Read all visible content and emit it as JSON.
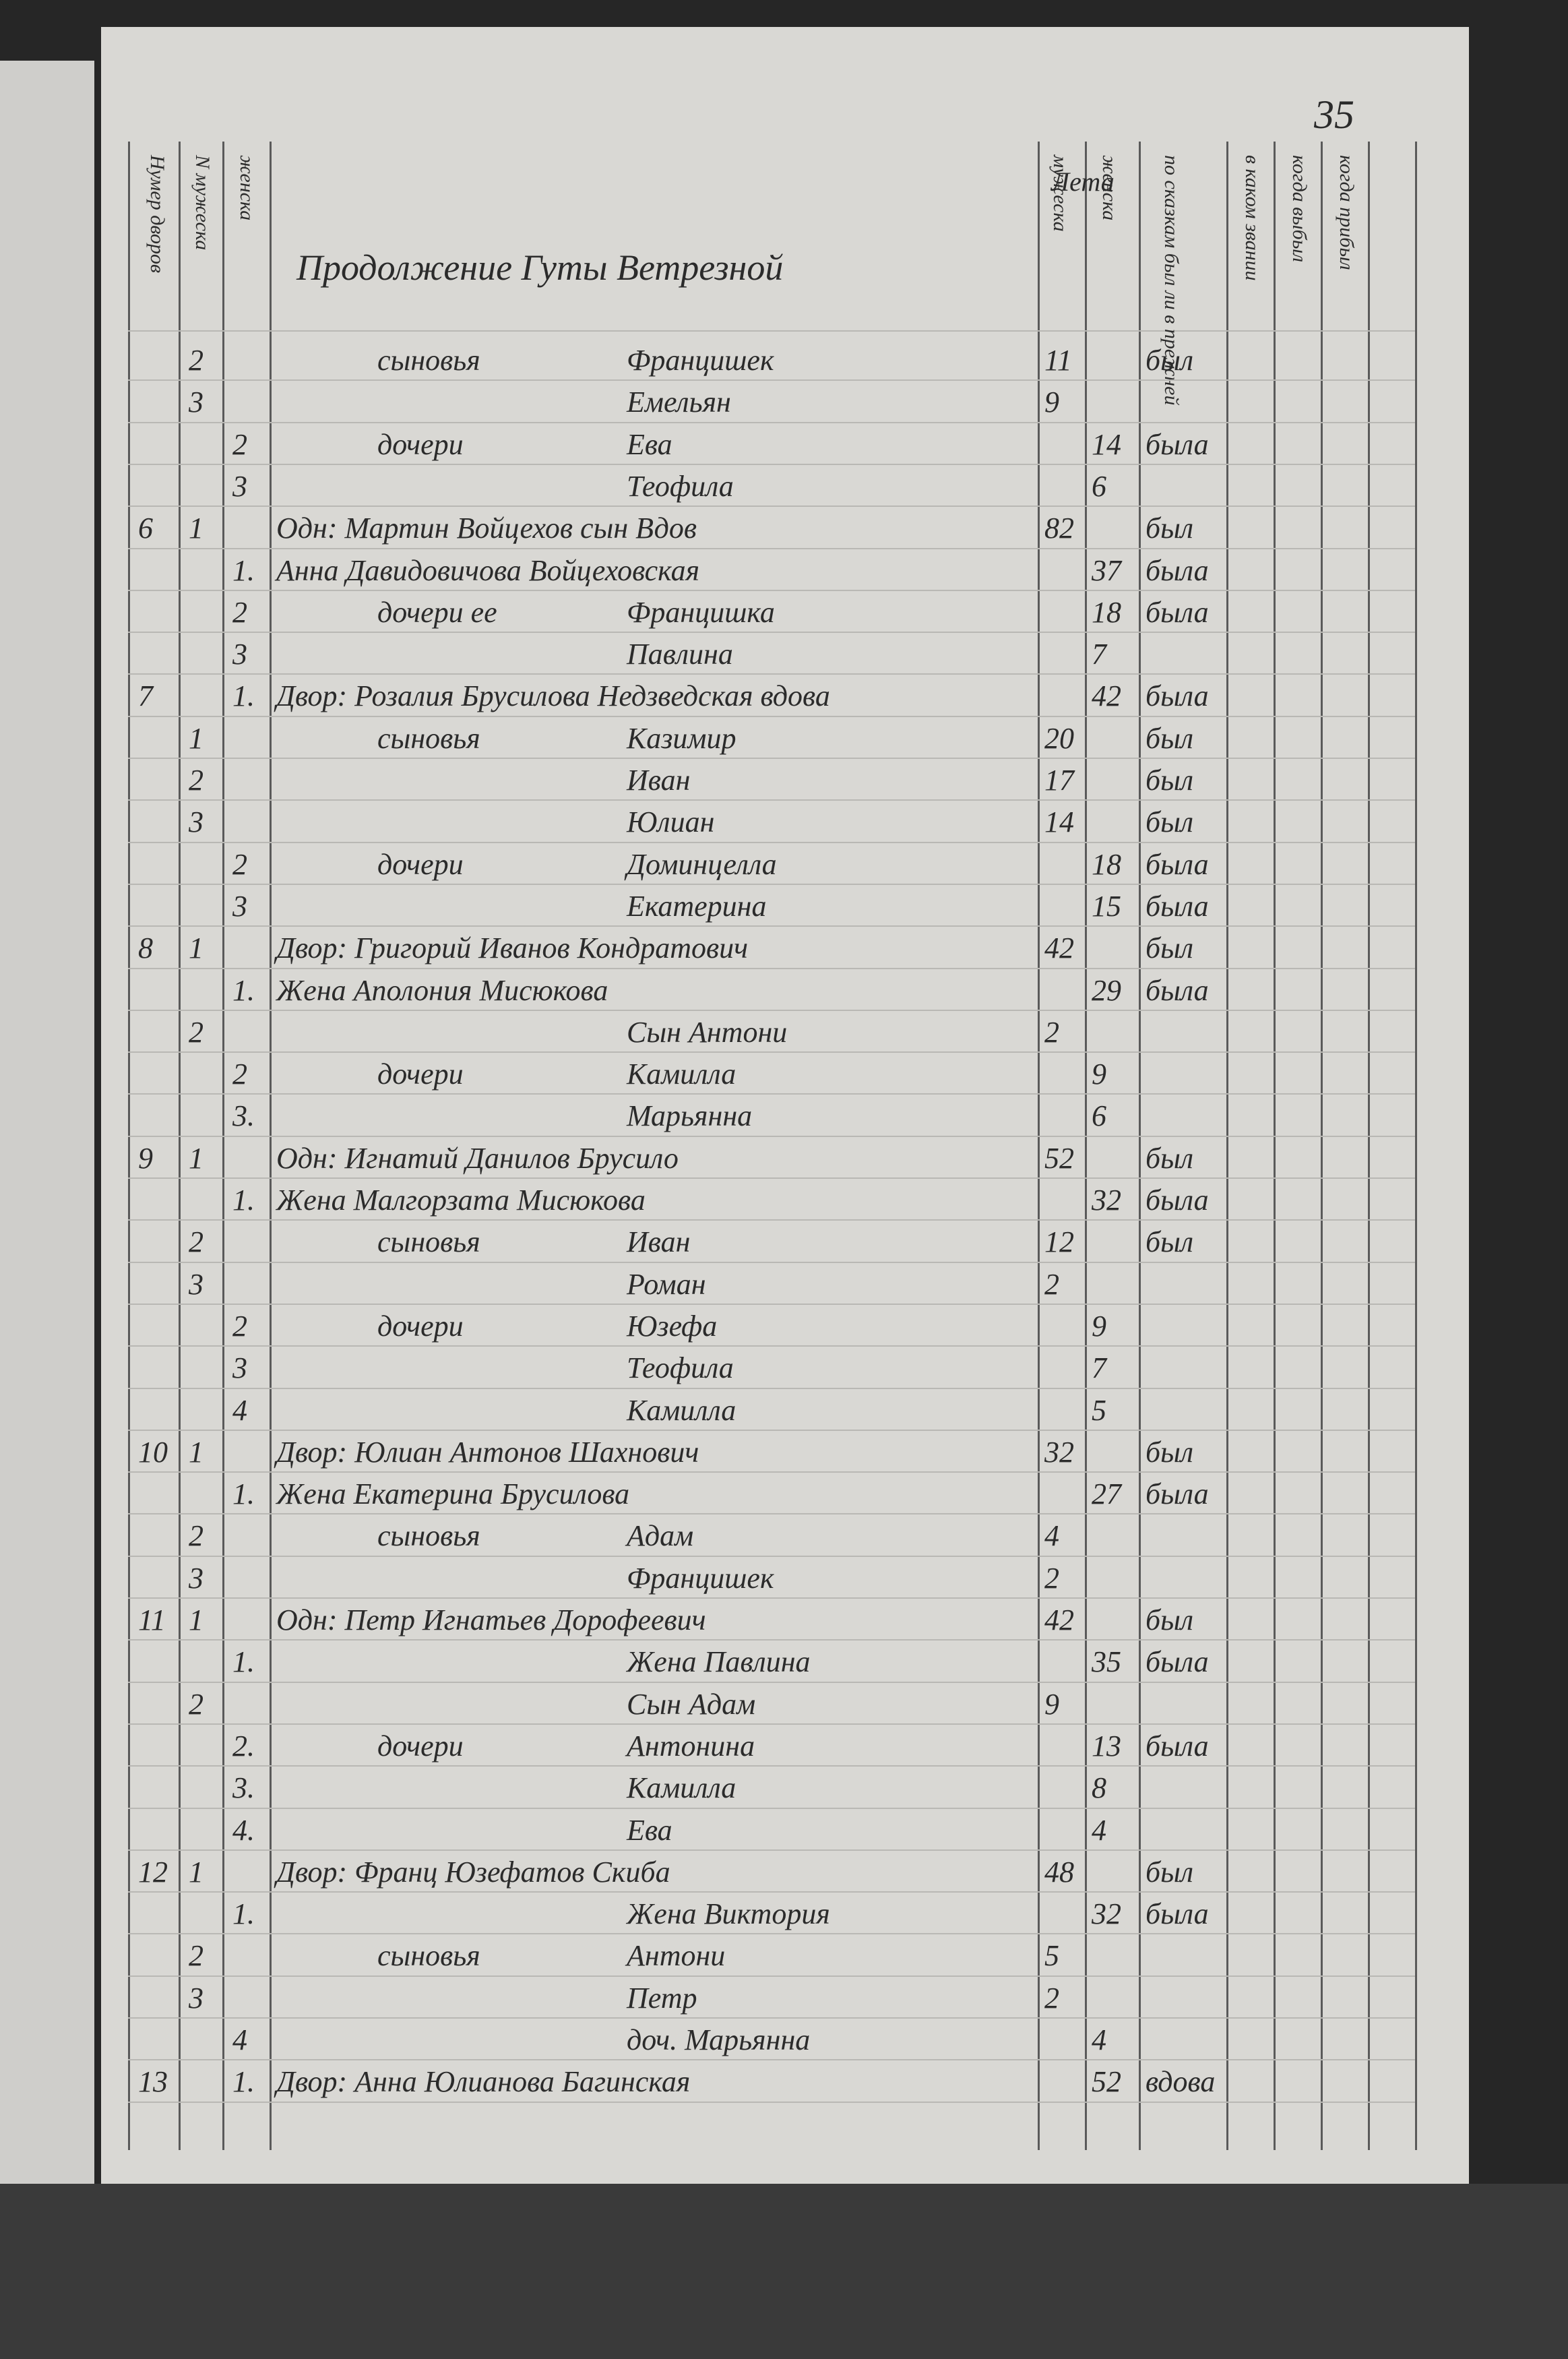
{
  "header": {
    "page_number": "35",
    "heading": "Продолжение Гуты Ветрезной",
    "columns": [
      "Нумер дворов",
      "N мужеска",
      "женска",
      "мужеска",
      "женска",
      "по сказкам был ли в прежней",
      "в каком звании",
      "когда выбыл",
      "когда прибыл"
    ],
    "age_header": "Лета"
  },
  "rows": [
    {
      "male_no": "2",
      "relation": "сыновья",
      "name": "Францишек",
      "age_m": "11",
      "status": "был"
    },
    {
      "male_no": "3",
      "name": "Емельян",
      "age_m": "9"
    },
    {
      "female_no": "2",
      "relation": "дочери",
      "name": "Ева",
      "age_f": "14",
      "status": "была"
    },
    {
      "female_no": "3",
      "name": "Теофила",
      "age_f": "6"
    },
    {
      "household": "6",
      "male_no": "1",
      "name": "Одн: Мартин Войцехов сын Вдов",
      "age_m": "82",
      "status": "был"
    },
    {
      "female_no": "1.",
      "name": "Анна Давидовичова Войцеховская",
      "age_f": "37",
      "status": "была"
    },
    {
      "female_no": "2",
      "relation": "дочери ее",
      "name": "Францишка",
      "age_f": "18",
      "status": "была"
    },
    {
      "female_no": "3",
      "name": "Павлина",
      "age_f": "7"
    },
    {
      "household": "7",
      "female_no": "1.",
      "name": "Двор: Розалия Брусилова Недзведская вдова",
      "age_f": "42",
      "status": "была"
    },
    {
      "male_no": "1",
      "relation": "сыновья",
      "name": "Казимир",
      "age_m": "20",
      "status": "был"
    },
    {
      "male_no": "2",
      "name": "Иван",
      "age_m": "17",
      "status": "был"
    },
    {
      "male_no": "3",
      "name": "Юлиан",
      "age_m": "14",
      "status": "был"
    },
    {
      "female_no": "2",
      "relation": "дочери",
      "name": "Доминцелла",
      "age_f": "18",
      "status": "была"
    },
    {
      "female_no": "3",
      "name": "Екатерина",
      "age_f": "15",
      "status": "была"
    },
    {
      "household": "8",
      "male_no": "1",
      "name": "Двор: Григорий Иванов Кондратович",
      "age_m": "42",
      "status": "был"
    },
    {
      "female_no": "1.",
      "name": "Жена Аполония Мисюкова",
      "age_f": "29",
      "status": "была"
    },
    {
      "male_no": "2",
      "name": "Сын Антони",
      "age_m": "2"
    },
    {
      "female_no": "2",
      "relation": "дочери",
      "name": "Камилла",
      "age_f": "9"
    },
    {
      "female_no": "3.",
      "name": "Марьянна",
      "age_f": "6"
    },
    {
      "household": "9",
      "male_no": "1",
      "name": "Одн: Игнатий Данилов Брусило",
      "age_m": "52",
      "status": "был"
    },
    {
      "female_no": "1.",
      "name": "Жена Малгорзата Мисюкова",
      "age_f": "32",
      "status": "была"
    },
    {
      "male_no": "2",
      "relation": "сыновья",
      "name": "Иван",
      "age_m": "12",
      "status": "был"
    },
    {
      "male_no": "3",
      "name": "Роман",
      "age_m": "2"
    },
    {
      "female_no": "2",
      "relation": "дочери",
      "name": "Юзефа",
      "age_f": "9"
    },
    {
      "female_no": "3",
      "name": "Теофила",
      "age_f": "7"
    },
    {
      "female_no": "4",
      "name": "Камилла",
      "age_f": "5"
    },
    {
      "household": "10",
      "male_no": "1",
      "name": "Двор: Юлиан Антонов Шахнович",
      "age_m": "32",
      "status": "был"
    },
    {
      "female_no": "1.",
      "name": "Жена Екатерина Брусилова",
      "age_f": "27",
      "status": "была"
    },
    {
      "male_no": "2",
      "relation": "сыновья",
      "name": "Адам",
      "age_m": "4"
    },
    {
      "male_no": "3",
      "name": "Францишек",
      "age_m": "2"
    },
    {
      "household": "11",
      "male_no": "1",
      "name": "Одн: Петр Игнатьев Дорофеевич",
      "age_m": "42",
      "status": "был"
    },
    {
      "female_no": "1.",
      "name": "Жена Павлина",
      "age_f": "35",
      "status": "была"
    },
    {
      "male_no": "2",
      "name": "Сын Адам",
      "age_m": "9"
    },
    {
      "female_no": "2.",
      "relation": "дочери",
      "name": "Антонина",
      "age_f": "13",
      "status": "была"
    },
    {
      "female_no": "3.",
      "name": "Камилла",
      "age_f": "8"
    },
    {
      "female_no": "4.",
      "name": "Ева",
      "age_f": "4"
    },
    {
      "household": "12",
      "male_no": "1",
      "name": "Двор: Франц Юзефатов Скиба",
      "age_m": "48",
      "status": "был"
    },
    {
      "female_no": "1.",
      "name": "Жена Виктория",
      "age_f": "32",
      "status": "была"
    },
    {
      "male_no": "2",
      "relation": "сыновья",
      "name": "Антони",
      "age_m": "5"
    },
    {
      "male_no": "3",
      "name": "Петр",
      "age_m": "2"
    },
    {
      "female_no": "4",
      "name": "доч. Марьянна",
      "age_f": "4"
    },
    {
      "household": "13",
      "female_no": "1.",
      "name": "Двор: Анна Юлианова Багинская",
      "age_f": "52",
      "status": "вдова"
    }
  ]
}
